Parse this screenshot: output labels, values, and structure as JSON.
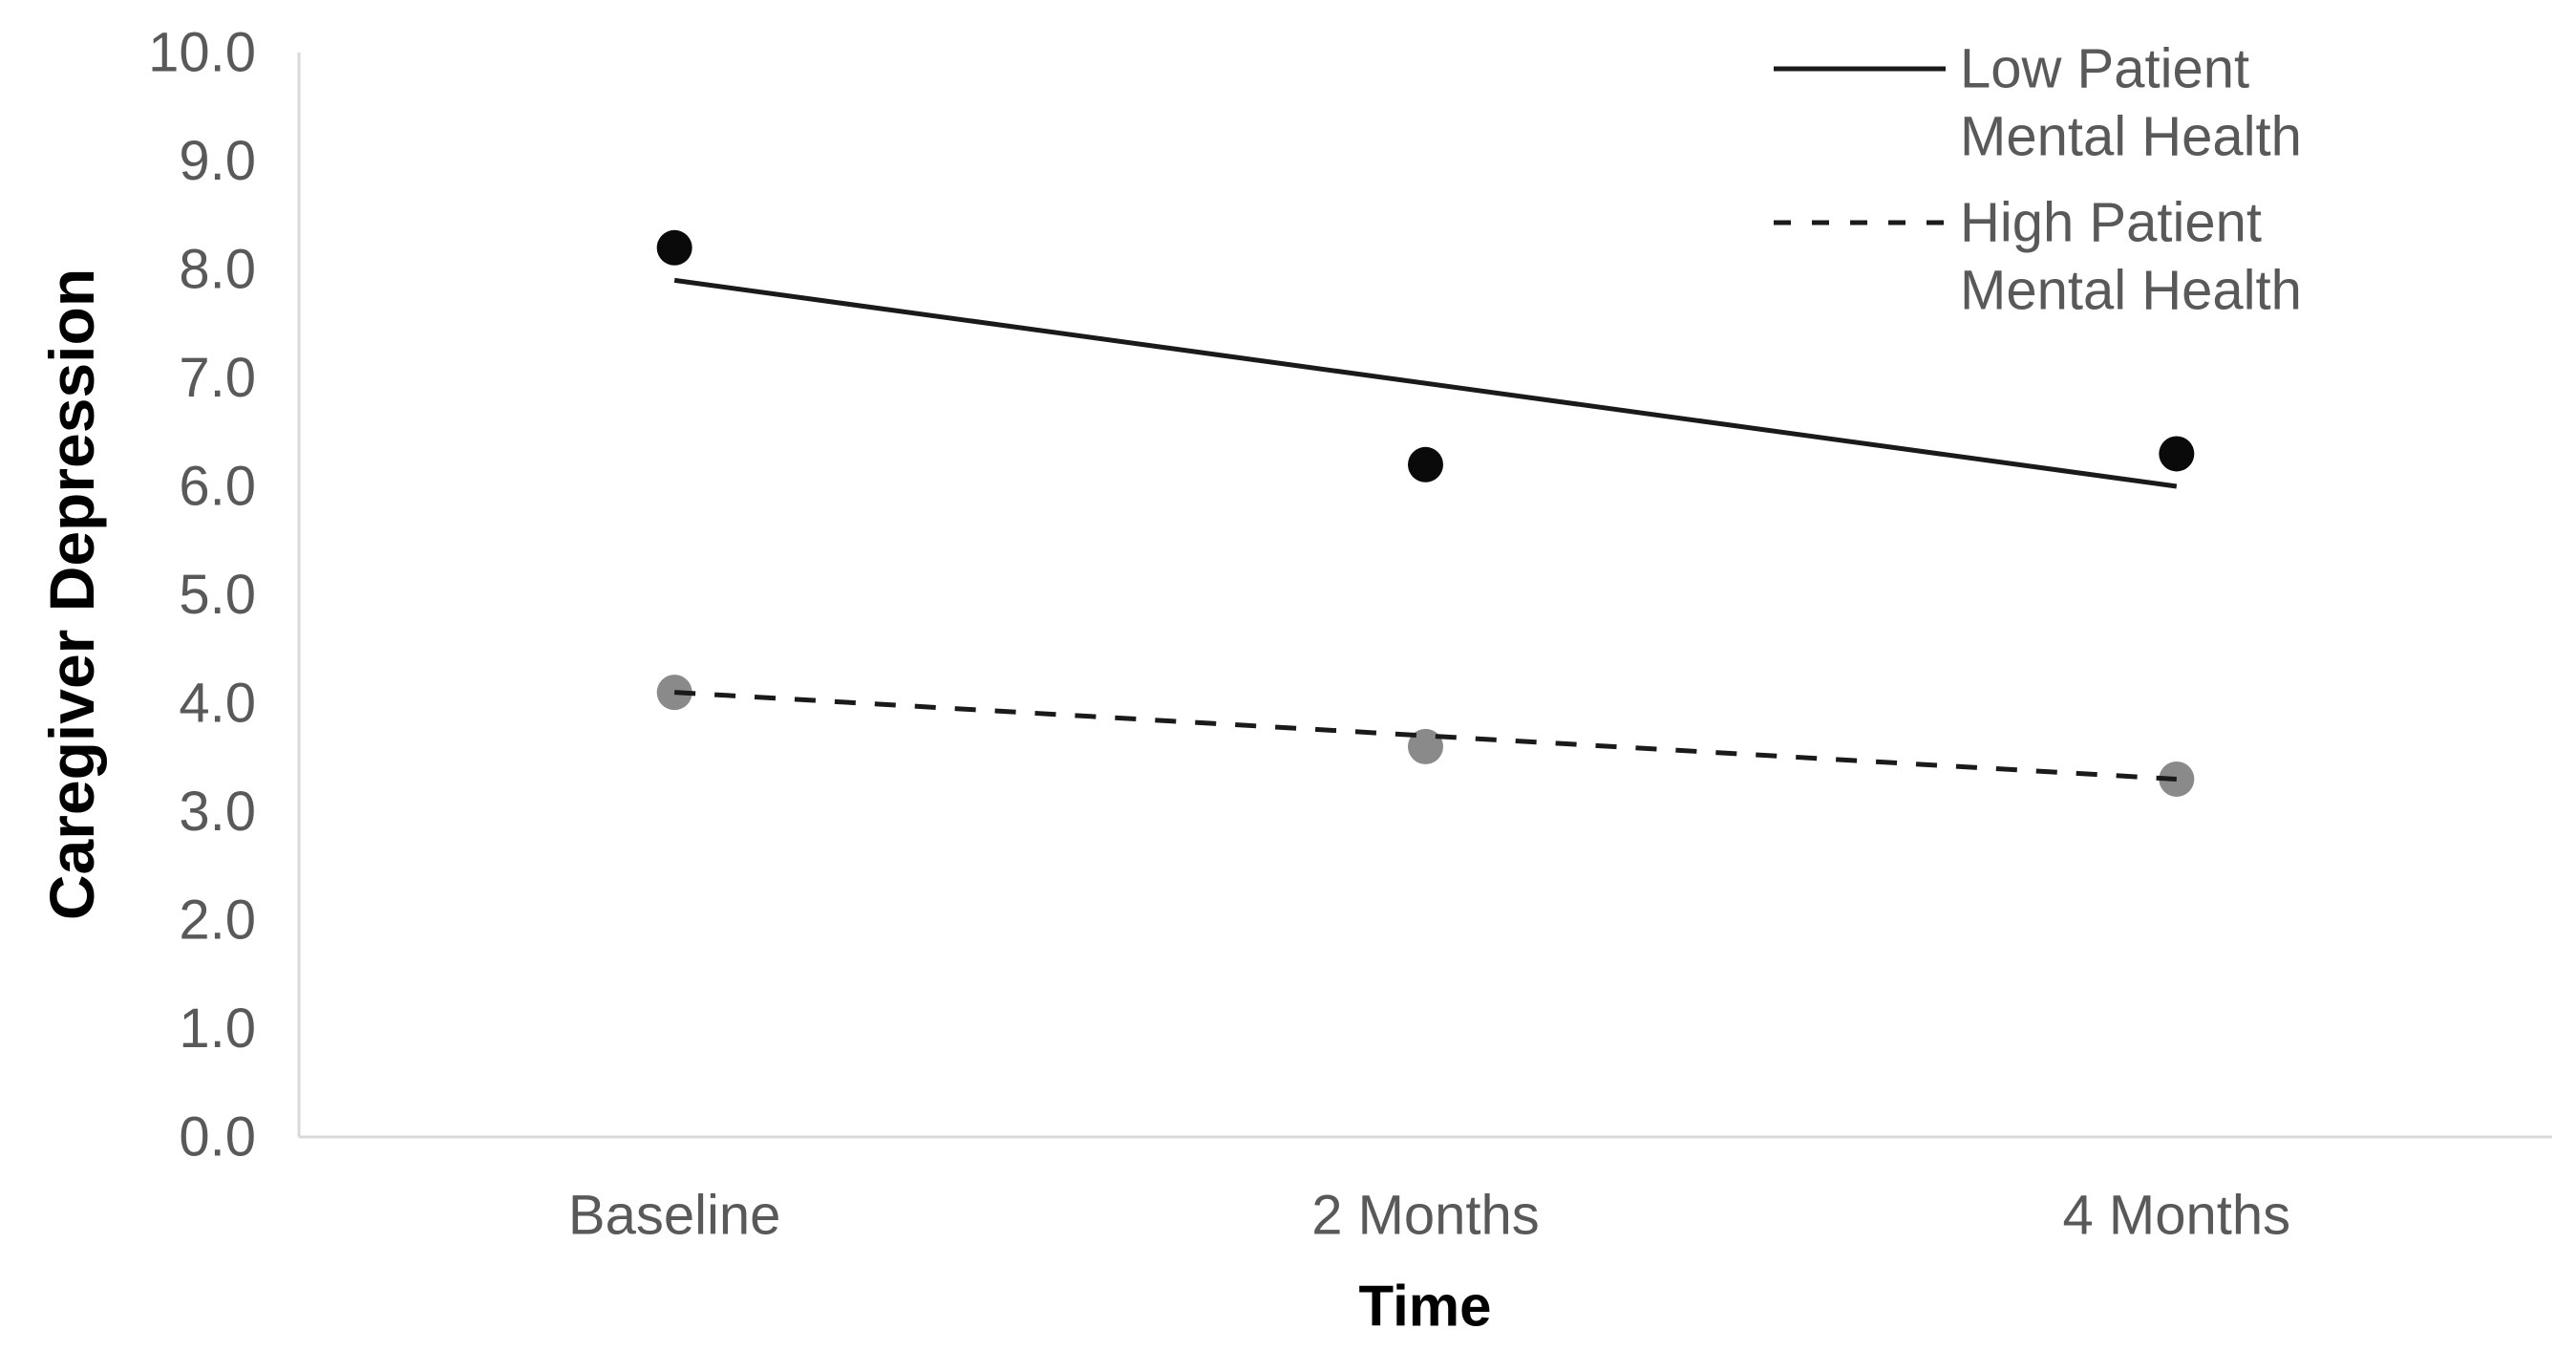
{
  "chart_data": {
    "type": "line",
    "title": "",
    "xlabel": "Time",
    "ylabel": "Caregiver Depression",
    "ylim": [
      0.0,
      10.0
    ],
    "y_ticks": [
      "0.0",
      "1.0",
      "2.0",
      "3.0",
      "4.0",
      "5.0",
      "6.0",
      "7.0",
      "8.0",
      "9.0",
      "10.0"
    ],
    "categories": [
      "Baseline",
      "2 Months",
      "4 Months"
    ],
    "grid": false,
    "legend_position": "top-right",
    "colors": {
      "axis": "#d9d9d9",
      "text_gray": "#595959",
      "title_black": "#000000",
      "low_line": "#1a1a1a",
      "low_marker": "#0a0a0a",
      "high_line": "#1a1a1a",
      "high_marker": "#8a8a8a"
    },
    "series": [
      {
        "name": "Low Patient Mental Health",
        "label_lines": [
          "Low Patient",
          "Mental Health"
        ],
        "line_style": "solid",
        "marker": "circle",
        "points": [
          8.2,
          6.2,
          6.3
        ],
        "trend": {
          "start": 7.9,
          "end": 6.0
        }
      },
      {
        "name": "High Patient Mental Health",
        "label_lines": [
          "High Patient",
          "Mental Health"
        ],
        "line_style": "dashed",
        "marker": "circle",
        "points": [
          4.1,
          3.6,
          3.3
        ],
        "trend": {
          "start": 4.1,
          "end": 3.3
        }
      }
    ]
  }
}
